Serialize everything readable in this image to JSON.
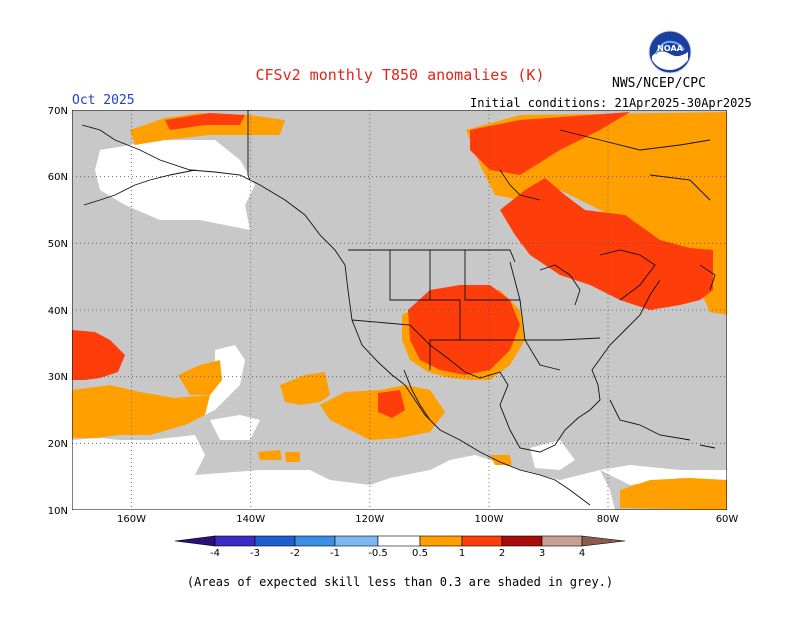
{
  "header": {
    "title": "CFSv2 monthly T850 anomalies (K)",
    "agency": "NWS/NCEP/CPC",
    "target_month": "Oct 2025",
    "initial_conditions": "Initial conditions: 21Apr2025-30Apr2025"
  },
  "logo": {
    "icon": "noaa-logo-icon",
    "text": "NOAA"
  },
  "axes": {
    "lat_labels": [
      "70N",
      "60N",
      "50N",
      "40N",
      "30N",
      "20N",
      "10N"
    ],
    "lon_labels": [
      "160W",
      "140W",
      "120W",
      "100W",
      "80W",
      "60W"
    ]
  },
  "colorbar": {
    "labels": [
      "-4",
      "-3",
      "-2",
      "-1",
      "-0.5",
      "0.5",
      "1",
      "2",
      "3",
      "4"
    ],
    "colors": {
      "below_-4": "#2b0f7a",
      "-4_-3": "#3a2bc6",
      "-3_-2": "#1f5ed0",
      "-2_-1": "#3a8ee6",
      "-1_-0.5": "#7cb8f2",
      "-0.5_0.5": "#ffffff",
      "0.5_1": "#ff9f00",
      "1_2": "#ff3d0a",
      "2_3": "#a80b0b",
      "3_4": "#c8a195",
      "above_4": "#8c5b4e"
    }
  },
  "map_colors": {
    "low_skill_grey": "#c8c8c8",
    "warm_0_5_to_1": "#ff9f00",
    "warm_1_to_2": "#ff3d0a"
  },
  "footnote": "(Areas of expected skill less than 0.3 are shaded in grey.)"
}
